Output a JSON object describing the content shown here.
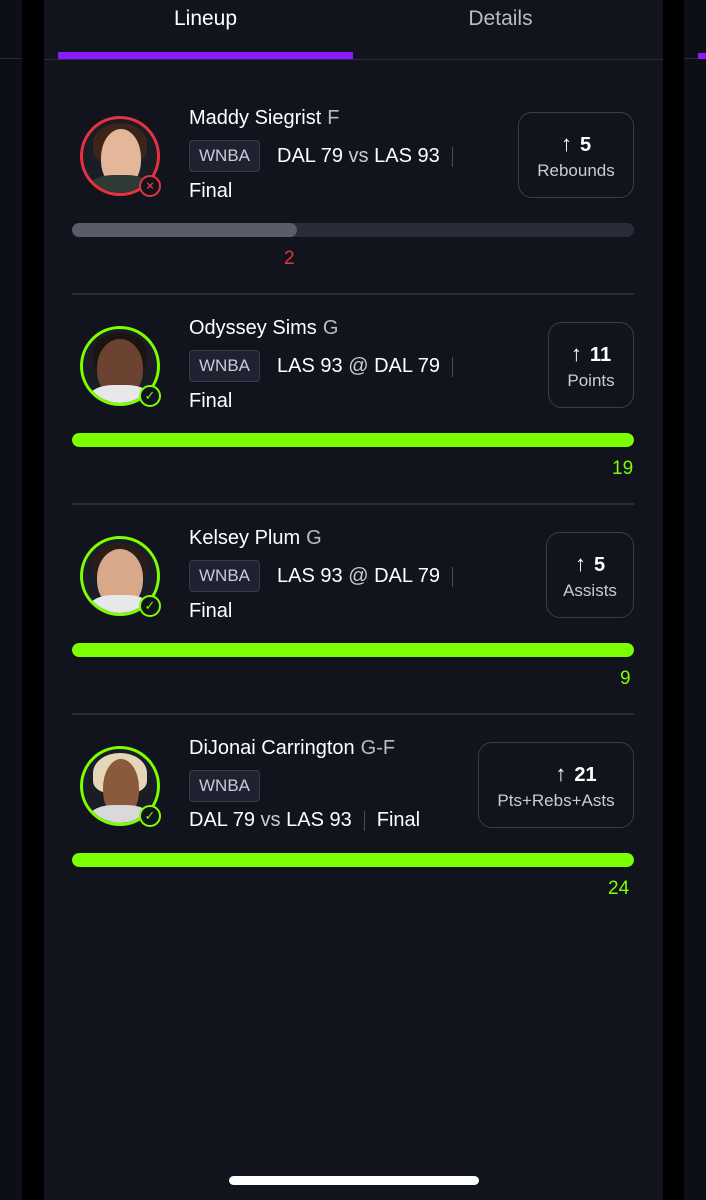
{
  "tabs": [
    {
      "label": "Lineup",
      "active": true
    },
    {
      "label": "Details",
      "active": false
    }
  ],
  "colors": {
    "accent": "#8a1bff",
    "win": "#7cff00",
    "loss": "#e8323f",
    "background": "#11131d"
  },
  "picks": [
    {
      "name": "Maddy Siegrist",
      "position": "F",
      "league": "WNBA",
      "matchup": {
        "team1": "DAL",
        "score1": "79",
        "connector": "vs",
        "team2": "LAS",
        "score2": "93"
      },
      "status_text": "Final",
      "result": "loss",
      "status_icon": "x-circle-icon",
      "projection": {
        "direction": "↑",
        "value": "5",
        "label": "Rebounds"
      },
      "actual": "2",
      "progress_fraction": 0.4
    },
    {
      "name": "Odyssey Sims",
      "position": "G",
      "league": "WNBA",
      "matchup": {
        "team1": "LAS",
        "score1": "93",
        "connector": "@",
        "team2": "DAL",
        "score2": "79"
      },
      "status_text": "Final",
      "result": "win",
      "status_icon": "check-circle-icon",
      "projection": {
        "direction": "↑",
        "value": "11",
        "label": "Points"
      },
      "actual": "19",
      "progress_fraction": 1.0
    },
    {
      "name": "Kelsey Plum",
      "position": "G",
      "league": "WNBA",
      "matchup": {
        "team1": "LAS",
        "score1": "93",
        "connector": "@",
        "team2": "DAL",
        "score2": "79"
      },
      "status_text": "Final",
      "result": "win",
      "status_icon": "check-circle-icon",
      "projection": {
        "direction": "↑",
        "value": "5",
        "label": "Assists"
      },
      "actual": "9",
      "progress_fraction": 1.0
    },
    {
      "name": "DiJonai Carrington",
      "position": "G-F",
      "league": "WNBA",
      "matchup": {
        "team1": "DAL",
        "score1": "79",
        "connector": "vs",
        "team2": "LAS",
        "score2": "93"
      },
      "status_text": "Final",
      "result": "win",
      "status_icon": "check-circle-icon",
      "projection": {
        "direction": "↑",
        "value": "21",
        "label": "Pts+Rebs+Asts"
      },
      "actual": "24",
      "progress_fraction": 1.0
    }
  ]
}
